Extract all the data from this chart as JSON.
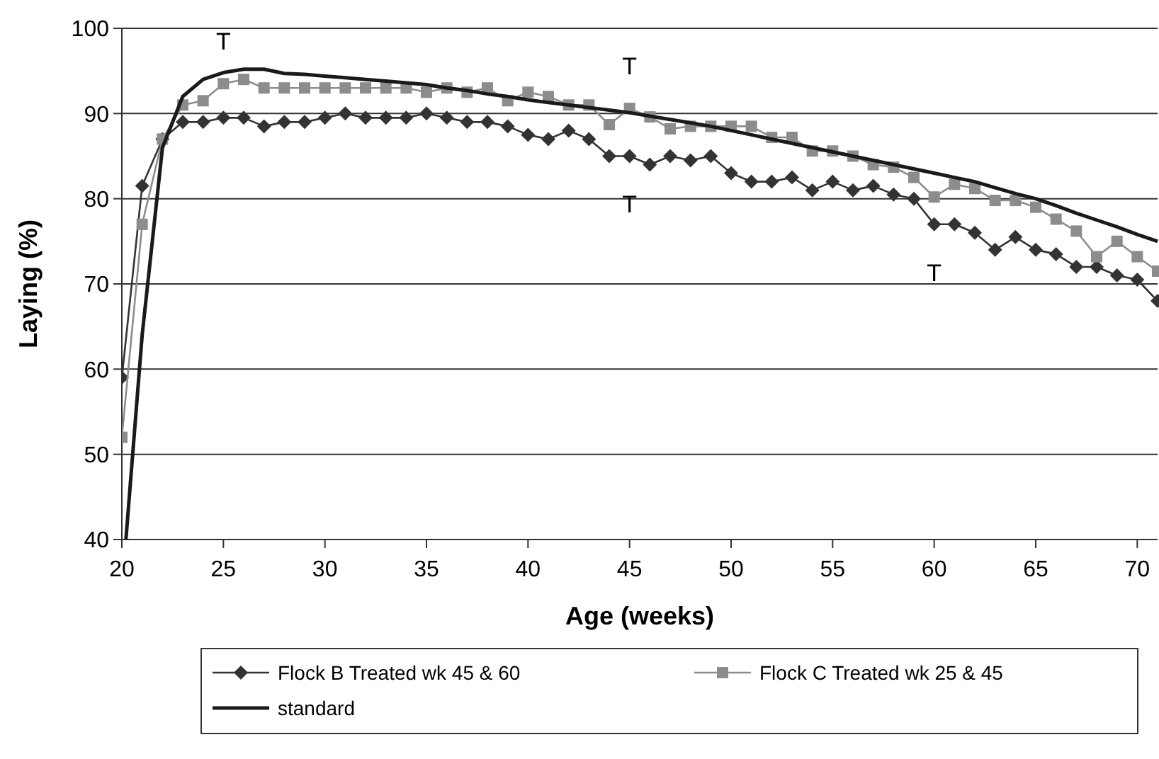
{
  "chart_data": {
    "type": "line",
    "xlabel": "Age (weeks)",
    "ylabel": "Laying (%)",
    "x": [
      20,
      21,
      22,
      23,
      24,
      25,
      26,
      27,
      28,
      29,
      30,
      31,
      32,
      33,
      34,
      35,
      36,
      37,
      38,
      39,
      40,
      41,
      42,
      43,
      44,
      45,
      46,
      47,
      48,
      49,
      50,
      51,
      52,
      53,
      54,
      55,
      56,
      57,
      58,
      59,
      60,
      61,
      62,
      63,
      64,
      65,
      66,
      67,
      68,
      69,
      70,
      71
    ],
    "xlim": [
      20,
      71
    ],
    "xticks": [
      20,
      25,
      30,
      35,
      40,
      45,
      50,
      55,
      60,
      65,
      70
    ],
    "ylim": [
      40,
      100
    ],
    "yticks": [
      40,
      50,
      60,
      70,
      80,
      90,
      100
    ],
    "grid": "y",
    "legend": "bottom",
    "series": [
      {
        "name": "Flock B Treated wk 45 & 60",
        "color": "#333333",
        "marker": "diamond",
        "values": [
          59,
          81.5,
          87,
          89,
          89,
          89.5,
          89.5,
          88.5,
          89,
          89,
          89.5,
          90,
          89.5,
          89.5,
          89.5,
          90,
          89.5,
          89,
          89,
          88.5,
          87.5,
          87,
          88,
          87,
          85,
          85,
          84,
          85,
          84.5,
          85,
          83,
          82,
          82,
          82.5,
          81,
          82,
          81,
          81.5,
          80.5,
          80,
          77,
          77,
          76,
          74,
          75.5,
          74,
          73.5,
          72,
          72,
          71,
          70.5,
          68
        ]
      },
      {
        "name": "Flock C Treated wk 25 & 45",
        "color": "#8c8c8c",
        "marker": "square",
        "values": [
          52,
          77,
          87,
          91,
          91.5,
          93.5,
          94,
          93,
          93,
          93,
          93,
          93,
          93,
          93,
          93,
          92.5,
          93,
          92.5,
          93,
          91.5,
          92.5,
          92,
          91,
          91,
          88.7,
          90.6,
          89.6,
          88.2,
          88.5,
          88.5,
          88.5,
          88.5,
          87.2,
          87.2,
          85.6,
          85.6,
          85,
          84,
          83.7,
          82.5,
          80.2,
          81.7,
          81.2,
          79.8,
          79.8,
          79,
          77.6,
          76.2,
          73.2,
          75,
          73.2,
          71.5
        ]
      },
      {
        "name": "standard",
        "color": "#1a1a1a",
        "marker": "none",
        "x": [
          20.2,
          21,
          22,
          23,
          24,
          25,
          26,
          27,
          28,
          29,
          30,
          31,
          32,
          33,
          34,
          35,
          36,
          37,
          38,
          39,
          40,
          41,
          42,
          43,
          44,
          45,
          46,
          47,
          48,
          49,
          50,
          51,
          52,
          53,
          54,
          55,
          56,
          57,
          58,
          59,
          60,
          61,
          62,
          63,
          64,
          65,
          66,
          67,
          68,
          69,
          70,
          71
        ],
        "values": [
          40,
          64,
          86,
          92,
          94,
          94.8,
          95.2,
          95.2,
          94.7,
          94.6,
          94.4,
          94.2,
          94,
          93.8,
          93.6,
          93.4,
          93,
          92.7,
          92.3,
          92,
          91.6,
          91.3,
          91,
          90.7,
          90.4,
          90.1,
          89.7,
          89.3,
          88.9,
          88.5,
          88,
          87.5,
          87,
          86.5,
          86,
          85.5,
          85,
          84.5,
          84,
          83.5,
          83,
          82.5,
          82,
          81.3,
          80.6,
          80,
          79.2,
          78.3,
          77.5,
          76.7,
          75.8,
          75
        ]
      }
    ],
    "annotations": [
      {
        "text": "T",
        "x": 25,
        "y": 93.5
      },
      {
        "text": "T",
        "x": 45,
        "y": 90.6
      },
      {
        "text": "T",
        "x": 45,
        "y": 85
      },
      {
        "text": "T",
        "x": 60,
        "y": 77
      }
    ]
  }
}
